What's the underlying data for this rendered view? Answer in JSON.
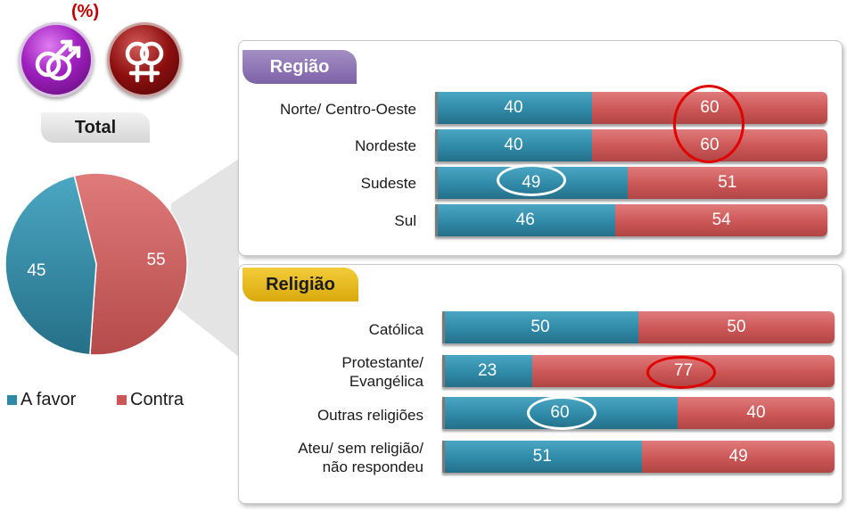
{
  "header": {
    "unit": "(%)"
  },
  "total": {
    "label": "Total",
    "favor": 45,
    "contra": 55
  },
  "legend": {
    "favor": "A favor",
    "contra": "Contra"
  },
  "colors": {
    "favor": "#2f8aa8",
    "contra": "#cc5656",
    "regiao_tag": "#8b72b3",
    "religiao_tag": "#e6b91f",
    "highlight_red": "#e00000",
    "highlight_teal": "#1f6f8b"
  },
  "icons": {
    "male": "double-male-symbol-icon",
    "female": "double-female-symbol-icon"
  },
  "chart_data": [
    {
      "type": "pie",
      "title": "Total",
      "categories": [
        "A favor",
        "Contra"
      ],
      "values": [
        45,
        55
      ]
    },
    {
      "type": "bar",
      "title": "Região",
      "stacked": true,
      "orientation": "horizontal",
      "categories": [
        "Norte/ Centro-Oeste",
        "Nordeste",
        "Sudeste",
        "Sul"
      ],
      "series": [
        {
          "name": "A favor",
          "values": [
            40,
            40,
            49,
            46
          ]
        },
        {
          "name": "Contra",
          "values": [
            60,
            60,
            51,
            54
          ]
        }
      ],
      "highlights": [
        {
          "category": "Norte/ Centro-Oeste",
          "series": "Contra",
          "color": "red"
        },
        {
          "category": "Nordeste",
          "series": "Contra",
          "color": "red"
        },
        {
          "category": "Sudeste",
          "series": "A favor",
          "color": "white"
        }
      ]
    },
    {
      "type": "bar",
      "title": "Religião",
      "stacked": true,
      "orientation": "horizontal",
      "categories": [
        "Católica",
        "Protestante/ Evangélica",
        "Outras religiões",
        "Ateu/ sem religião/ não respondeu"
      ],
      "series": [
        {
          "name": "A favor",
          "values": [
            50,
            23,
            60,
            51
          ]
        },
        {
          "name": "Contra",
          "values": [
            50,
            77,
            40,
            49
          ]
        }
      ],
      "highlights": [
        {
          "category": "Protestante/ Evangélica",
          "series": "Contra",
          "color": "red"
        },
        {
          "category": "Outras religiões",
          "series": "A favor",
          "color": "white"
        }
      ]
    }
  ],
  "regiao": {
    "title": "Região",
    "rows": [
      {
        "label": "Norte/ Centro-Oeste",
        "favor": 40,
        "contra": 60,
        "favor_text": "40",
        "contra_text": "60"
      },
      {
        "label": "Nordeste",
        "favor": 40,
        "contra": 60,
        "favor_text": "40",
        "contra_text": "60"
      },
      {
        "label": "Sudeste",
        "favor": 49,
        "contra": 51,
        "favor_text": "49",
        "contra_text": "51"
      },
      {
        "label": "Sul",
        "favor": 46,
        "contra": 54,
        "favor_text": "46",
        "contra_text": "54"
      }
    ]
  },
  "religiao": {
    "title": "Religião",
    "rows": [
      {
        "label": "Católica",
        "favor": 50,
        "contra": 50,
        "favor_text": "50",
        "contra_text": "50"
      },
      {
        "label_line1": "Protestante/",
        "label_line2": "Evangélica",
        "favor": 23,
        "contra": 77,
        "favor_text": "23",
        "contra_text": "77"
      },
      {
        "label": "Outras religiões",
        "favor": 60,
        "contra": 40,
        "favor_text": "60",
        "contra_text": "40"
      },
      {
        "label_line1": "Ateu/ sem religião/",
        "label_line2": "não respondeu",
        "favor": 51,
        "contra": 49,
        "favor_text": "51",
        "contra_text": "49"
      }
    ]
  }
}
